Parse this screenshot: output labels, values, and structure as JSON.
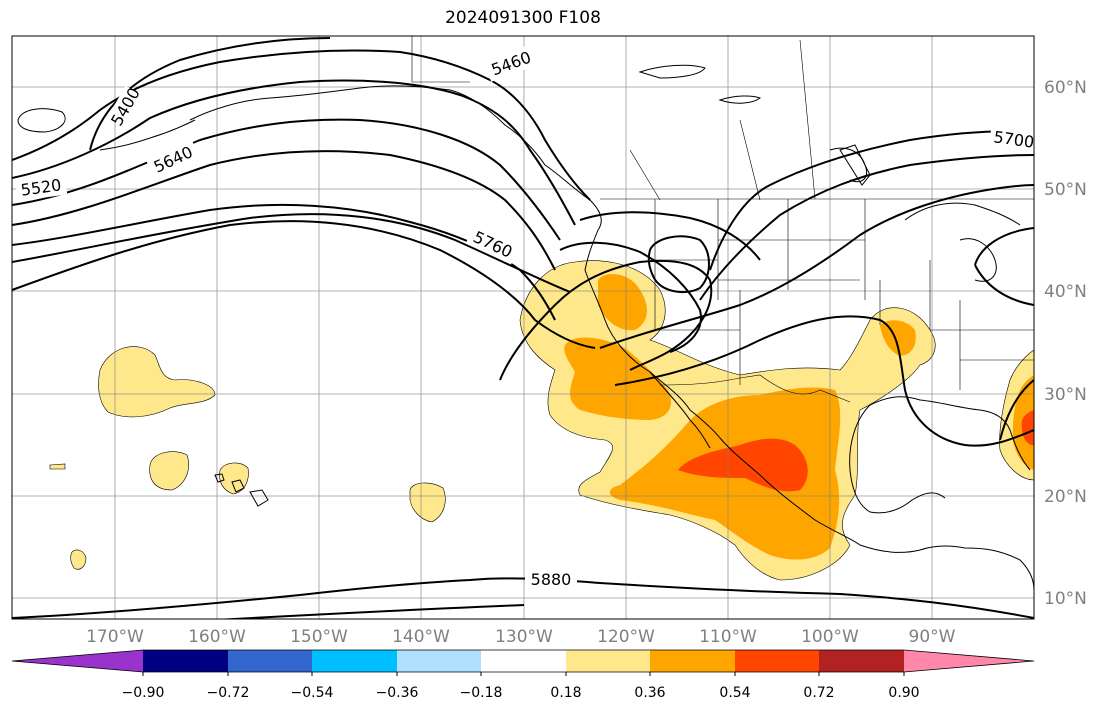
{
  "title": "2024091300 F108",
  "map": {
    "region": "North Pacific / North America",
    "lon_range": [
      -180,
      -80
    ],
    "lat_range": [
      8,
      65
    ],
    "grid": true,
    "lon_ticks": [
      "170°W",
      "160°W",
      "150°W",
      "140°W",
      "130°W",
      "120°W",
      "110°W",
      "100°W",
      "90°W"
    ],
    "lat_ticks": [
      "10°N",
      "20°N",
      "30°N",
      "40°N",
      "50°N",
      "60°N"
    ],
    "contour_labels": [
      "5400",
      "5460",
      "5520",
      "5640",
      "5700",
      "5760",
      "5880"
    ]
  },
  "colorbar": {
    "ticks": [
      "−0.90",
      "−0.72",
      "−0.54",
      "−0.36",
      "−0.18",
      "0.18",
      "0.36",
      "0.54",
      "0.72",
      "0.90"
    ],
    "colors": [
      "#9933cc",
      "#000080",
      "#3366cc",
      "#00bfff",
      "#b0e0ff",
      "#ffffff",
      "#ffe88c",
      "#ffa500",
      "#ff4500",
      "#b22222",
      "#ff88aa"
    ]
  },
  "fill_colors": {
    "light": "#ffe88c",
    "medium": "#ffa500",
    "strong": "#ff4500"
  }
}
